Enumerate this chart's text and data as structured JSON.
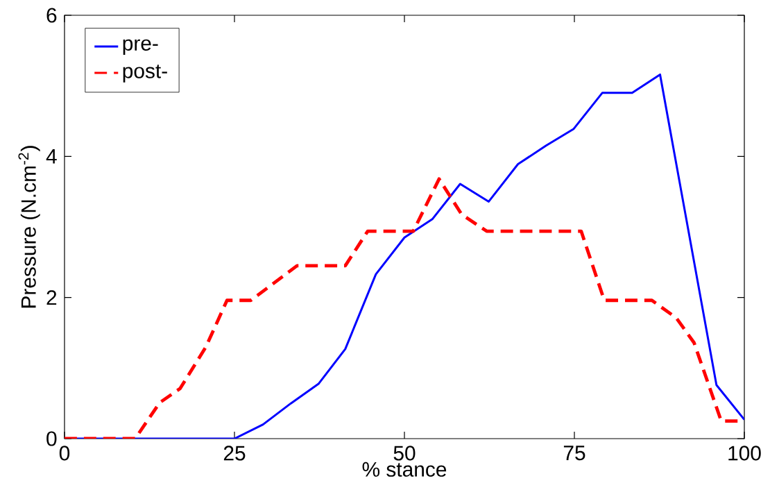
{
  "chart_data": {
    "type": "line",
    "xlabel": "% stance",
    "ylabel": "Pressure (N.cm$^{-2}$)",
    "xlim": [
      0,
      100
    ],
    "ylim": [
      0,
      6
    ],
    "xticks": [
      0,
      25,
      50,
      75,
      100
    ],
    "yticks": [
      0,
      2,
      4,
      6
    ],
    "grid": false,
    "legend": "top left",
    "series": [
      {
        "name": "pre-",
        "color": "#0000ff",
        "line_style": "solid",
        "x": [
          0,
          4.2,
          8.3,
          12.5,
          16.7,
          20.8,
          25,
          29.2,
          33.3,
          37.4,
          41.3,
          45.8,
          50,
          54.1,
          58.2,
          62.4,
          66.7,
          70.8,
          74.9,
          79.1,
          83.5,
          87.6,
          95.9,
          100
        ],
        "values": [
          0,
          0,
          0,
          0,
          0,
          0,
          0,
          0.2,
          0.5,
          0.78,
          1.27,
          2.33,
          2.85,
          3.11,
          3.61,
          3.36,
          3.89,
          4.15,
          4.39,
          4.9,
          4.9,
          5.16,
          0.76,
          0.27
        ]
      },
      {
        "name": "post-",
        "color": "#ff0000",
        "line_style": "dashed",
        "x": [
          0,
          4.2,
          8.3,
          10.4,
          14.0,
          17.0,
          20.8,
          23.9,
          27.4,
          34.2,
          41.3,
          44.6,
          51.3,
          55.1,
          58.4,
          62.1,
          76.0,
          79.4,
          86.4,
          90.0,
          92.6,
          96.6,
          100
        ],
        "values": [
          0,
          0,
          0,
          0,
          0.51,
          0.71,
          1.3,
          1.96,
          1.96,
          2.45,
          2.45,
          2.94,
          2.94,
          3.68,
          3.18,
          2.94,
          2.94,
          1.96,
          1.96,
          1.71,
          1.36,
          0.25,
          0.25
        ]
      }
    ]
  }
}
